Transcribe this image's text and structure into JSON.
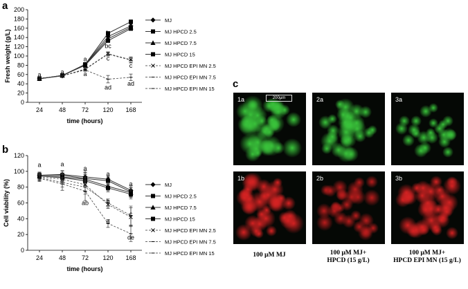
{
  "panel_labels": {
    "a": "a",
    "b": "b",
    "c": "c"
  },
  "chart_data": [
    {
      "panel": "a",
      "type": "line",
      "ylabel": "Fresh weight (g/L)",
      "xlabel": "time (hours)",
      "x": [
        "24",
        "48",
        "72",
        "120",
        "168"
      ],
      "ylim": [
        0,
        200
      ],
      "yticks": [
        0,
        20,
        40,
        60,
        80,
        100,
        120,
        140,
        160,
        180,
        200
      ],
      "grid": false,
      "legend_position": "right",
      "series": [
        {
          "name": "MJ",
          "marker": "diamond",
          "dash": false,
          "values": [
            51,
            57,
            82,
            142,
            165
          ],
          "err": [
            2,
            2,
            3,
            3,
            4
          ]
        },
        {
          "name": "MJ HPCD 2.5",
          "marker": "square",
          "dash": false,
          "values": [
            51,
            58,
            82,
            149,
            174
          ],
          "err": [
            2,
            2,
            3,
            3,
            4
          ]
        },
        {
          "name": "MJ HPCD 7.5",
          "marker": "triangle",
          "dash": false,
          "values": [
            51,
            58,
            81,
            137,
            162
          ],
          "err": [
            2,
            2,
            3,
            3,
            4
          ]
        },
        {
          "name": "MJ HPCD 15",
          "marker": "square",
          "dash": false,
          "values": [
            51,
            58,
            80,
            133,
            159
          ],
          "err": [
            2,
            2,
            3,
            3,
            4
          ]
        },
        {
          "name": "MJ HPCD EPI MN 2.5",
          "marker": "x",
          "dash": true,
          "values": [
            52,
            57,
            72,
            105,
            92
          ],
          "err": [
            2,
            2,
            3,
            4,
            6
          ]
        },
        {
          "name": "MJ HPCD EPI MN 7.5",
          "marker": "dash",
          "dash": true,
          "values": [
            52,
            57,
            71,
            104,
            91
          ],
          "err": [
            2,
            2,
            3,
            4,
            6
          ]
        },
        {
          "name": "MJ HPCD EPI MN 15",
          "marker": "dash",
          "dash": true,
          "values": [
            52,
            57,
            70,
            50,
            54
          ],
          "err": [
            2,
            2,
            3,
            8,
            7
          ]
        }
      ],
      "annotations": [
        {
          "text": "a",
          "x": "24",
          "y": 60
        },
        {
          "text": "a",
          "x": "48",
          "y": 66
        },
        {
          "text": "a",
          "x": "72",
          "y": 93
        },
        {
          "text": "a",
          "x": "72",
          "y": 61
        },
        {
          "text": "b",
          "x": "120",
          "y": 150
        },
        {
          "text": "bc",
          "x": "120",
          "y": 122
        },
        {
          "text": "c",
          "x": "120",
          "y": 95
        },
        {
          "text": "ad",
          "x": "120",
          "y": 32
        },
        {
          "text": "b",
          "x": "168",
          "y": 160
        },
        {
          "text": "c",
          "x": "168",
          "y": 79
        },
        {
          "text": "ad",
          "x": "168",
          "y": 40
        }
      ]
    },
    {
      "panel": "b",
      "type": "line",
      "ylabel": "Cell viability (%)",
      "xlabel": "time (hours)",
      "x": [
        "24",
        "48",
        "72",
        "120",
        "168"
      ],
      "ylim": [
        0,
        120
      ],
      "yticks": [
        0,
        20,
        40,
        60,
        80,
        100,
        120
      ],
      "grid": false,
      "legend_position": "right",
      "series": [
        {
          "name": "MJ",
          "marker": "diamond",
          "dash": false,
          "values": [
            95,
            96,
            93,
            90,
            76
          ],
          "err": [
            4,
            5,
            8,
            5,
            6
          ]
        },
        {
          "name": "MJ HPCD 2.5",
          "marker": "square",
          "dash": false,
          "values": [
            95,
            95,
            91,
            88,
            74
          ],
          "err": [
            4,
            5,
            8,
            5,
            6
          ]
        },
        {
          "name": "MJ HPCD 7.5",
          "marker": "triangle",
          "dash": false,
          "values": [
            94,
            93,
            90,
            81,
            73
          ],
          "err": [
            4,
            5,
            8,
            5,
            6
          ]
        },
        {
          "name": "MJ HPCD 15",
          "marker": "square",
          "dash": false,
          "values": [
            94,
            92,
            88,
            79,
            71
          ],
          "err": [
            4,
            5,
            8,
            5,
            6
          ]
        },
        {
          "name": "MJ HPCD EPI MN 2.5",
          "marker": "x",
          "dash": true,
          "values": [
            93,
            90,
            83,
            58,
            42
          ],
          "err": [
            4,
            6,
            9,
            5,
            12
          ]
        },
        {
          "name": "MJ HPCD EPI MN 7.5",
          "marker": "dash",
          "dash": true,
          "values": [
            92,
            86,
            80,
            60,
            44
          ],
          "err": [
            4,
            6,
            9,
            5,
            12
          ]
        },
        {
          "name": "MJ HPCD EPI MN 15",
          "marker": "dash",
          "dash": true,
          "values": [
            91,
            84,
            75,
            34,
            21
          ],
          "err": [
            4,
            8,
            12,
            5,
            10
          ]
        }
      ],
      "annotations": [
        {
          "text": "a",
          "x": "24",
          "y": 108
        },
        {
          "text": "a",
          "x": "48",
          "y": 109
        },
        {
          "text": "a",
          "x": "72",
          "y": 104
        },
        {
          "text": "ab",
          "x": "72",
          "y": 60
        },
        {
          "text": "a",
          "x": "120",
          "y": 97
        },
        {
          "text": "a",
          "x": "120",
          "y": 92
        },
        {
          "text": "b",
          "x": "120",
          "y": 62
        },
        {
          "text": "d",
          "x": "120",
          "y": 36
        },
        {
          "text": "a",
          "x": "168",
          "y": 84
        },
        {
          "text": "c",
          "x": "168",
          "y": 46
        },
        {
          "text": "de",
          "x": "168",
          "y": 16
        }
      ]
    }
  ],
  "micrographs": {
    "scale_label": "200µm",
    "tiles": [
      {
        "label": "1a",
        "color": "#39c23a",
        "dense": 0.9
      },
      {
        "label": "2a",
        "color": "#39c23a",
        "dense": 0.65
      },
      {
        "label": "3a",
        "color": "#39c23a",
        "dense": 0.35
      },
      {
        "label": "1b",
        "color": "#d42222",
        "dense": 0.85
      },
      {
        "label": "2b",
        "color": "#b81c1c",
        "dense": 0.55
      },
      {
        "label": "3b",
        "color": "#d42222",
        "dense": 0.75
      }
    ],
    "captions": [
      {
        "line1": "100 µM MJ",
        "line2": ""
      },
      {
        "line1": "100 µM MJ+",
        "line2": "HPCD (15 g/L)"
      },
      {
        "line1": "100 µM MJ+",
        "line2": "HPCD  EPI MN  (15 g/L)"
      }
    ]
  }
}
